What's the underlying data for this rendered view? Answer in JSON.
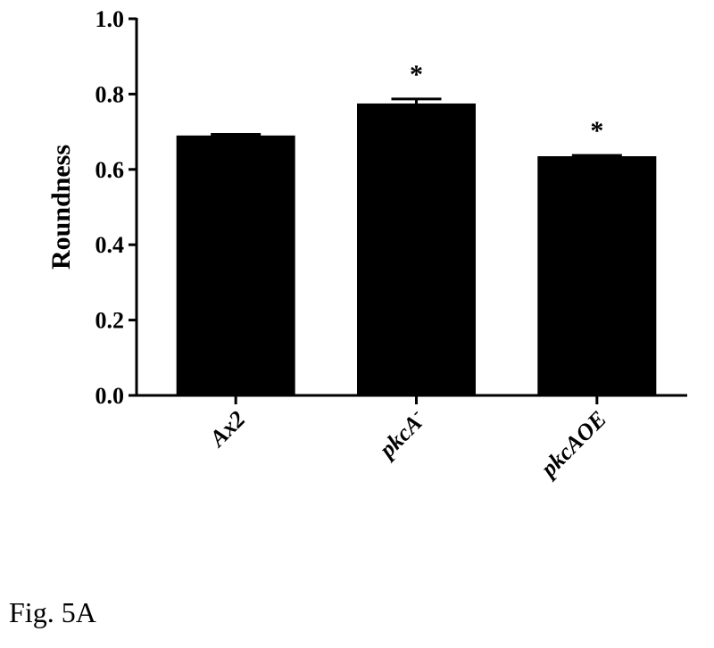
{
  "figure_label": "Fig. 5A",
  "chart_data": {
    "type": "bar",
    "ylabel": "Roundness",
    "xlabel": "",
    "ylim": [
      0,
      1.0
    ],
    "yticks": [
      "0.0",
      "0.2",
      "0.4",
      "0.6",
      "0.8",
      "1.0"
    ],
    "categories": [
      {
        "base": "Ax2",
        "sup": ""
      },
      {
        "base": "pkcA",
        "sup": "-"
      },
      {
        "base": "pkcAOE",
        "sup": ""
      }
    ],
    "values": [
      0.69,
      0.775,
      0.635
    ],
    "errors": [
      0.003,
      0.012,
      0.002
    ],
    "significance": [
      "",
      "*",
      "*"
    ],
    "bar_color": "#000000"
  }
}
